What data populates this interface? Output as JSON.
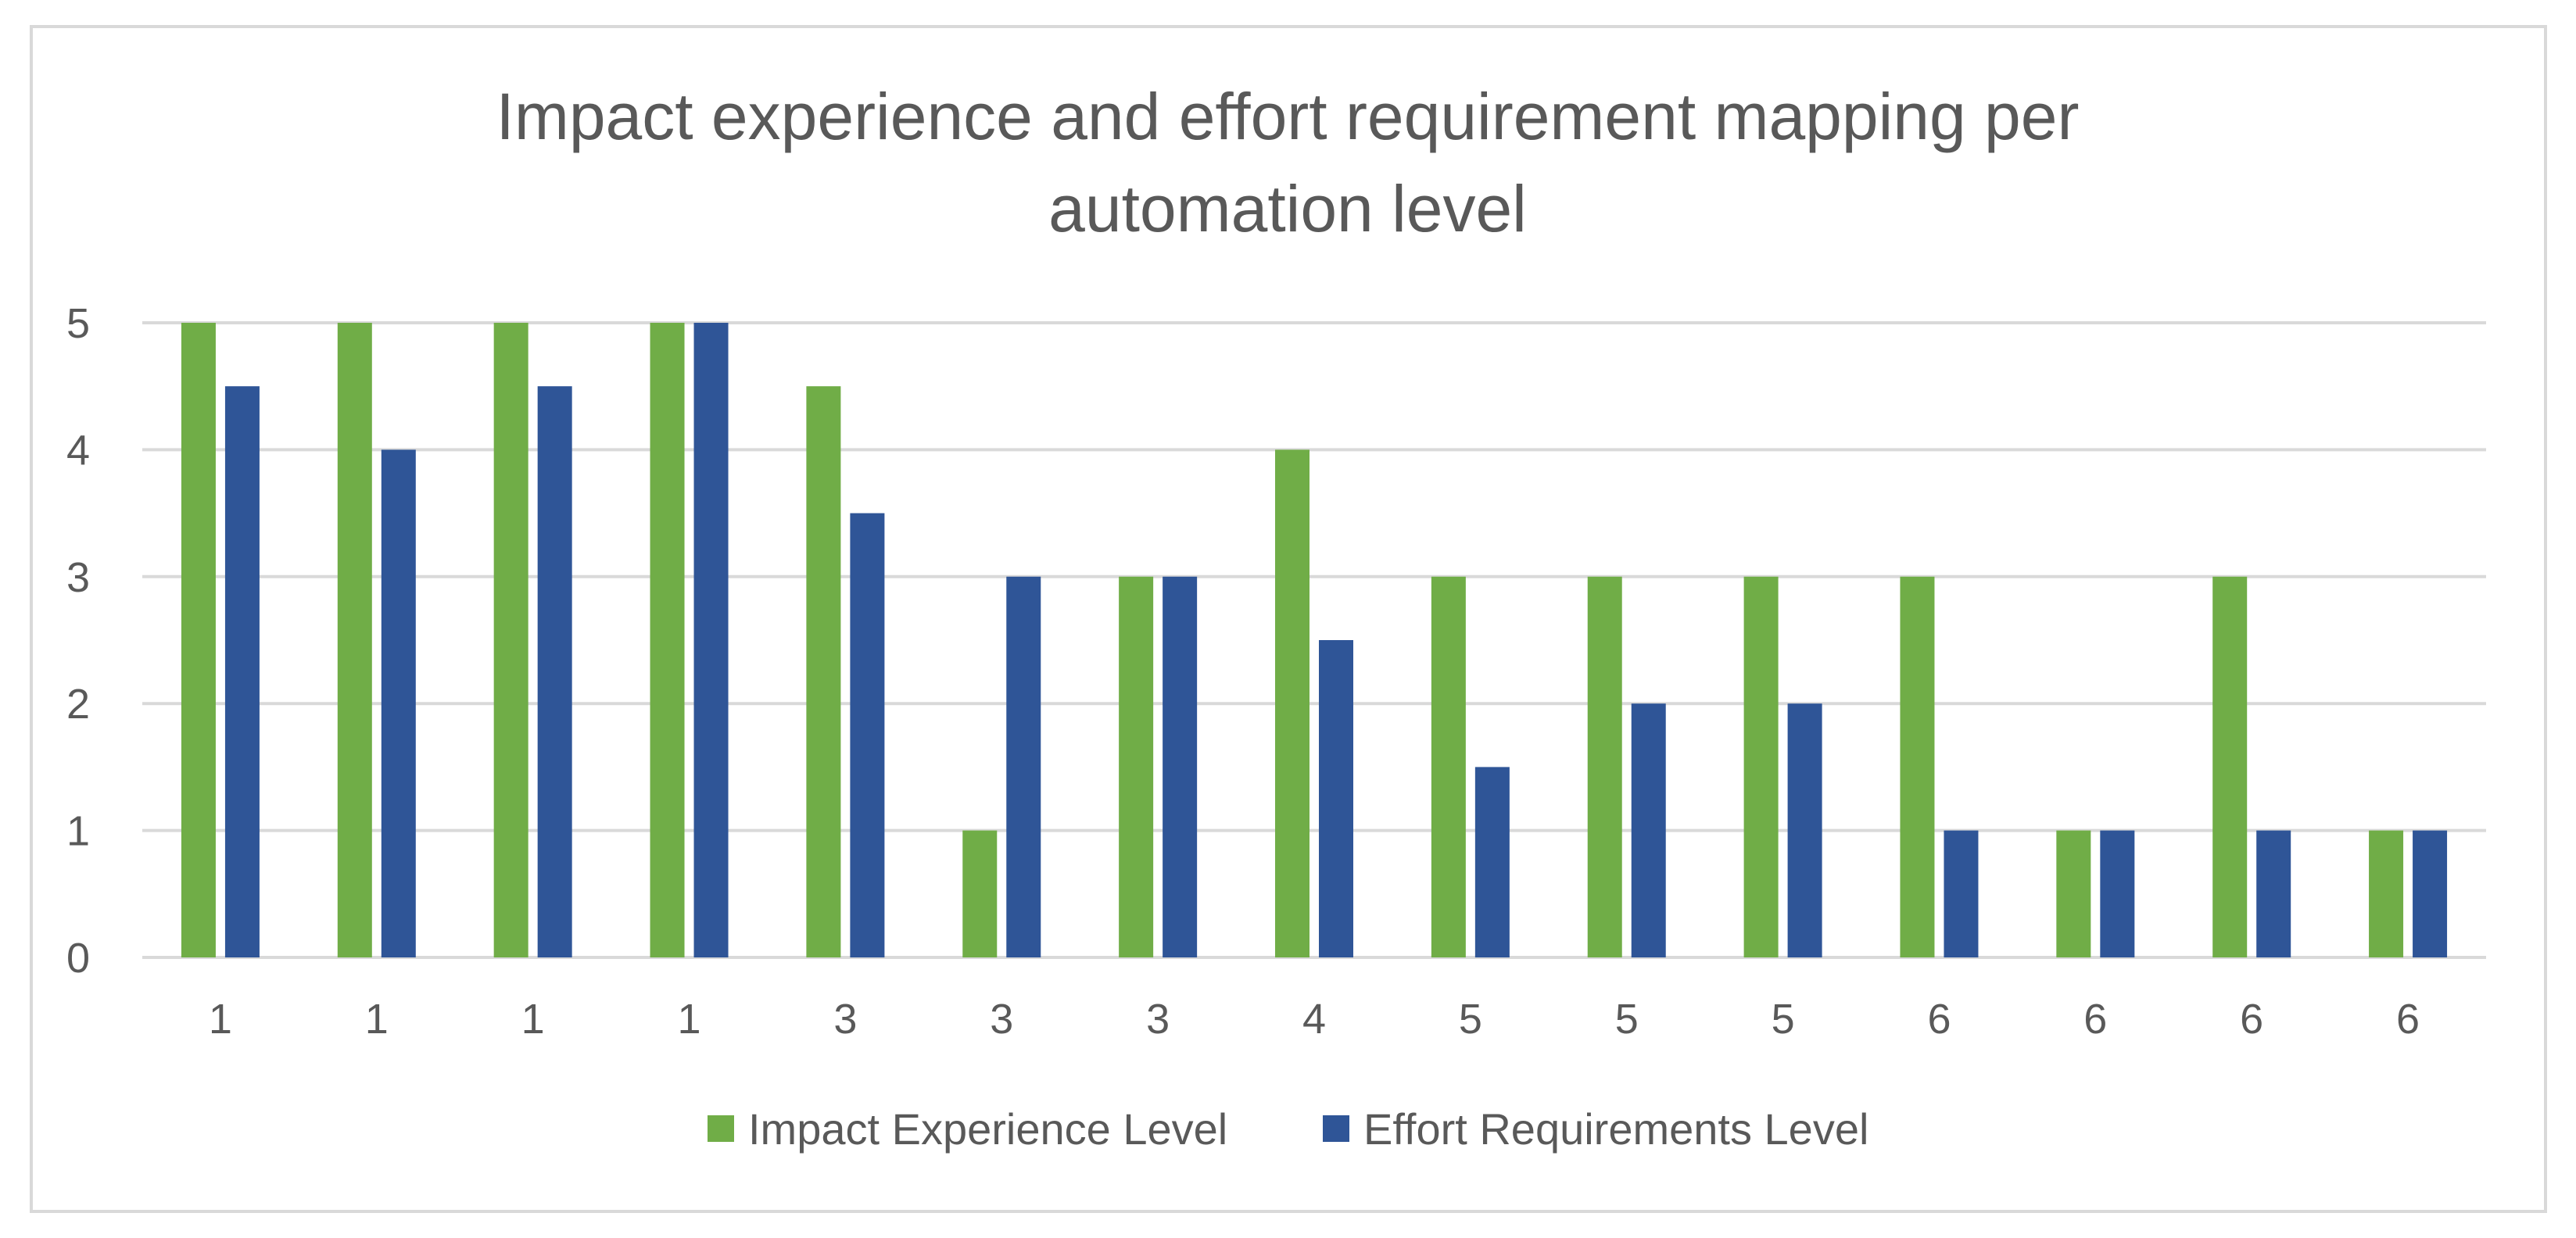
{
  "chart_data": {
    "type": "bar",
    "title_lines": [
      "Impact experience and effort requirement mapping per",
      "automation level"
    ],
    "categories": [
      "1",
      "1",
      "1",
      "1",
      "3",
      "3",
      "3",
      "4",
      "5",
      "5",
      "5",
      "6",
      "6",
      "6",
      "6"
    ],
    "series": [
      {
        "name": "Impact Experience Level",
        "color": "#70ad47",
        "values": [
          5,
          5,
          5,
          5,
          4.5,
          1,
          3,
          4,
          3,
          3,
          3,
          3,
          1,
          3,
          1
        ]
      },
      {
        "name": "Effort Requirements Level",
        "color": "#2f5597",
        "values": [
          4.5,
          4,
          4.5,
          5,
          3.5,
          3,
          3,
          2.5,
          1.5,
          2,
          2,
          1,
          1,
          1,
          1
        ]
      }
    ],
    "yticks": [
      "0",
      "1",
      "2",
      "3",
      "4",
      "5"
    ],
    "ylim": [
      0,
      5
    ],
    "xlabel": "",
    "ylabel": "",
    "grid": true,
    "legend_position": "bottom-center"
  }
}
